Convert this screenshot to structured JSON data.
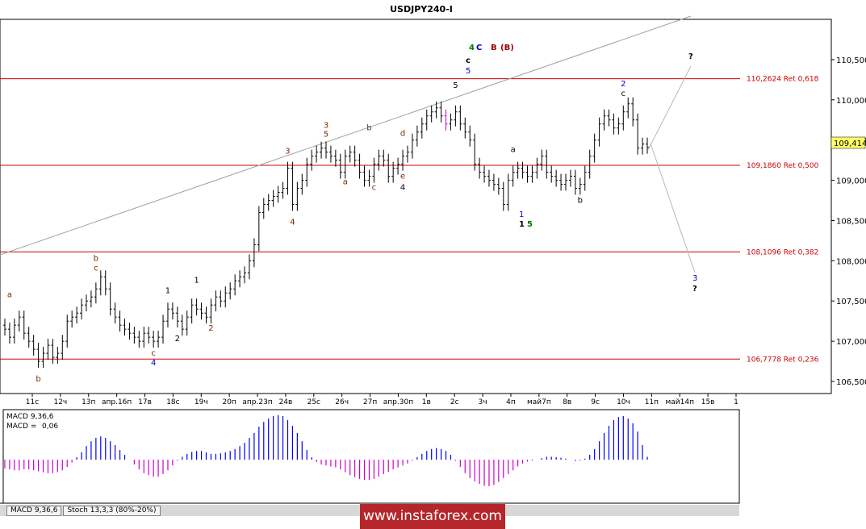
{
  "title": "USDJPY240-I",
  "current_price": "109,414",
  "macd_label_name": "MACD 9,36,6",
  "macd_label_value_prefix": "MACD =",
  "macd_label_value": "0,06",
  "tabs": [
    "MACD 9,36,6",
    "Stoch 13,3,3 (80%-20%)"
  ],
  "watermark": "www.instaforex.com",
  "colors": {
    "bull": "#0000ff",
    "bear": "#cc00cc",
    "fib": "#cc0000",
    "wave_blue": "#0000cc",
    "wave_green": "#007700",
    "wave_brown": "#7a2a00",
    "wave_darkred": "#990000",
    "price_highlight": "#ffff66"
  },
  "chart_data": {
    "type": "candlestick",
    "title": "USDJPY240-I",
    "ylim": [
      106.35,
      111.0
    ],
    "y_ticks": [
      {
        "value": 106.5,
        "label": "106,500"
      },
      {
        "value": 107.0,
        "label": "107,000"
      },
      {
        "value": 107.5,
        "label": "107,500"
      },
      {
        "value": 108.0,
        "label": "108,000"
      },
      {
        "value": 108.5,
        "label": "108,500"
      },
      {
        "value": 109.0,
        "label": "109,000"
      },
      {
        "value": 109.5,
        "label": "109,500"
      },
      {
        "value": 110.0,
        "label": "110,000"
      },
      {
        "value": 110.5,
        "label": "110,500"
      }
    ],
    "x_ticks": [
      "11с",
      "12ч",
      "13п",
      "апр.16п",
      "17в",
      "18с",
      "19ч",
      "20п",
      "апр.23п",
      "24в",
      "25с",
      "26ч",
      "27п",
      "апр.30п",
      "1в",
      "2с",
      "3ч",
      "4п",
      "май7п",
      "8в",
      "9с",
      "10ч",
      "11п",
      "май14п",
      "15в",
      "1"
    ],
    "fib_levels": [
      {
        "value": 110.2624,
        "label": "110,2624 Ret 0,618"
      },
      {
        "value": 109.186,
        "label": "109,1860 Ret 0,500"
      },
      {
        "value": 108.1096,
        "label": "108,1096 Ret 0,382"
      },
      {
        "value": 106.7778,
        "label": "106,7778 Ret 0,236"
      }
    ],
    "closes": [
      107.15,
      107.05,
      107.2,
      107.3,
      107.1,
      107.0,
      106.9,
      106.75,
      106.85,
      106.95,
      106.8,
      106.85,
      107.0,
      107.25,
      107.3,
      107.35,
      107.45,
      107.5,
      107.55,
      107.65,
      107.8,
      107.65,
      107.4,
      107.3,
      107.2,
      107.15,
      107.1,
      107.05,
      107.0,
      107.1,
      107.05,
      107.0,
      107.05,
      107.25,
      107.4,
      107.35,
      107.25,
      107.15,
      107.3,
      107.45,
      107.4,
      107.35,
      107.3,
      107.45,
      107.55,
      107.5,
      107.6,
      107.65,
      107.75,
      107.8,
      107.85,
      108.0,
      108.2,
      108.6,
      108.7,
      108.75,
      108.8,
      108.85,
      108.9,
      109.15,
      108.7,
      108.9,
      109.0,
      109.2,
      109.3,
      109.35,
      109.4,
      109.35,
      109.3,
      109.25,
      109.1,
      109.3,
      109.35,
      109.25,
      109.1,
      109.0,
      109.05,
      109.2,
      109.3,
      109.25,
      109.05,
      109.15,
      109.2,
      109.3,
      109.35,
      109.5,
      109.6,
      109.7,
      109.8,
      109.85,
      109.9,
      109.8,
      109.7,
      109.75,
      109.85,
      109.7,
      109.6,
      109.5,
      109.2,
      109.1,
      109.05,
      109.0,
      108.95,
      108.9,
      108.7,
      109.0,
      109.1,
      109.15,
      109.1,
      109.05,
      109.1,
      109.2,
      109.3,
      109.1,
      109.05,
      109.0,
      108.95,
      109.0,
      109.05,
      108.9,
      108.95,
      109.1,
      109.3,
      109.5,
      109.7,
      109.8,
      109.75,
      109.65,
      109.7,
      109.85,
      109.95,
      109.75,
      109.4,
      109.45,
      109.41
    ],
    "macd_hist": [
      -0.18,
      -0.2,
      -0.22,
      -0.22,
      -0.2,
      -0.2,
      -0.22,
      -0.24,
      -0.26,
      -0.28,
      -0.28,
      -0.26,
      -0.22,
      -0.15,
      -0.06,
      0.05,
      0.15,
      0.28,
      0.38,
      0.45,
      0.48,
      0.45,
      0.38,
      0.3,
      0.2,
      0.1,
      0.0,
      -0.1,
      -0.2,
      -0.28,
      -0.32,
      -0.35,
      -0.35,
      -0.3,
      -0.22,
      -0.12,
      -0.02,
      0.06,
      0.12,
      0.16,
      0.18,
      0.18,
      0.15,
      0.12,
      0.12,
      0.13,
      0.15,
      0.18,
      0.22,
      0.28,
      0.35,
      0.45,
      0.55,
      0.68,
      0.78,
      0.85,
      0.9,
      0.92,
      0.9,
      0.82,
      0.7,
      0.55,
      0.38,
      0.2,
      0.05,
      -0.05,
      -0.1,
      -0.12,
      -0.14,
      -0.16,
      -0.2,
      -0.26,
      -0.32,
      -0.36,
      -0.4,
      -0.42,
      -0.42,
      -0.4,
      -0.35,
      -0.3,
      -0.25,
      -0.2,
      -0.16,
      -0.12,
      -0.08,
      -0.02,
      0.05,
      0.12,
      0.18,
      0.22,
      0.24,
      0.22,
      0.18,
      0.1,
      -0.02,
      -0.15,
      -0.28,
      -0.38,
      -0.45,
      -0.5,
      -0.54,
      -0.55,
      -0.52,
      -0.46,
      -0.38,
      -0.3,
      -0.22,
      -0.14,
      -0.08,
      -0.04,
      -0.02,
      0.0,
      0.03,
      0.06,
      0.06,
      0.05,
      0.04,
      0.02,
      0.0,
      -0.03,
      -0.02,
      0.02,
      0.1,
      0.22,
      0.38,
      0.55,
      0.7,
      0.82,
      0.88,
      0.9,
      0.85,
      0.75,
      0.58,
      0.3,
      0.06
    ],
    "wave_labels": [
      {
        "text": "a",
        "i": 1,
        "v": 107.55,
        "color": "#7a2a00"
      },
      {
        "text": "b",
        "i": 7,
        "v": 106.5,
        "color": "#7a2a00"
      },
      {
        "text": "b",
        "i": 19,
        "v": 108.0,
        "color": "#7a2a00"
      },
      {
        "text": "c",
        "i": 19,
        "v": 107.88,
        "color": "#7a2a00"
      },
      {
        "text": "c",
        "i": 31,
        "v": 106.82,
        "color": "#7a2a00"
      },
      {
        "text": "4",
        "i": 31,
        "v": 106.7,
        "color": "#0000cc"
      },
      {
        "text": "1",
        "i": 34,
        "v": 107.6,
        "color": "#000000"
      },
      {
        "text": "2",
        "i": 36,
        "v": 107.0,
        "color": "#000000"
      },
      {
        "text": "1",
        "i": 40,
        "v": 107.73,
        "color": "#000000"
      },
      {
        "text": "2",
        "i": 43,
        "v": 107.13,
        "color": "#7a2a00"
      },
      {
        "text": "3",
        "i": 59,
        "v": 109.33,
        "color": "#7a2a00"
      },
      {
        "text": "4",
        "i": 60,
        "v": 108.45,
        "color": "#7a2a00"
      },
      {
        "text": "3",
        "i": 67,
        "v": 109.65,
        "color": "#7a2a00"
      },
      {
        "text": "5",
        "i": 67,
        "v": 109.54,
        "color": "#7a2a00"
      },
      {
        "text": "a",
        "i": 71,
        "v": 108.95,
        "color": "#7a2a00"
      },
      {
        "text": "b",
        "i": 76,
        "v": 109.62,
        "color": "#7a2a00"
      },
      {
        "text": "c",
        "i": 77,
        "v": 108.88,
        "color": "#7a2a00"
      },
      {
        "text": "d",
        "i": 83,
        "v": 109.55,
        "color": "#7a2a00"
      },
      {
        "text": "e",
        "i": 83,
        "v": 109.02,
        "color": "#7a2a00"
      },
      {
        "text": "4",
        "i": 83,
        "v": 108.88,
        "color": "#000000"
      },
      {
        "text": "5",
        "i": 94,
        "v": 110.15,
        "color": "#000000"
      },
      {
        "text": "a",
        "i": 106,
        "v": 109.35,
        "color": "#000000"
      },
      {
        "text": "b",
        "i": 120,
        "v": 108.72,
        "color": "#000000"
      },
      {
        "text": "2",
        "i": 129,
        "v": 110.17,
        "color": "#0000cc"
      },
      {
        "text": "c",
        "i": 129,
        "v": 110.05,
        "color": "#000000"
      }
    ]
  }
}
